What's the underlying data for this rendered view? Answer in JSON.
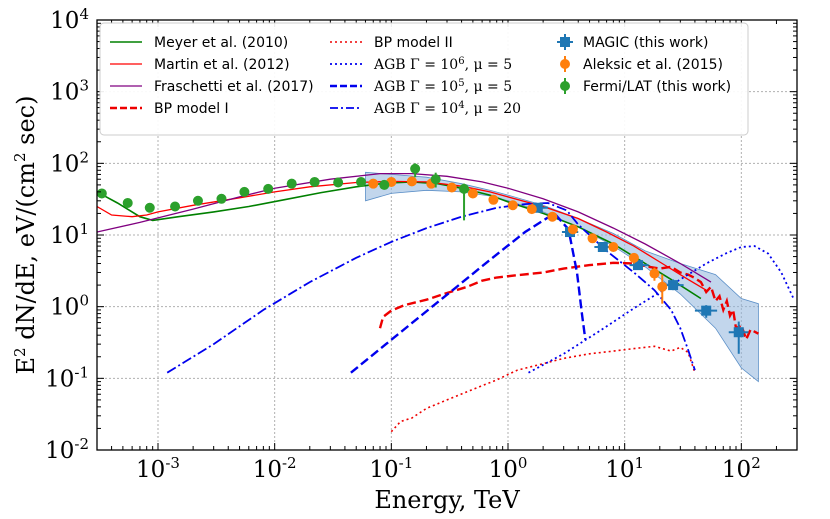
{
  "chart_data": {
    "type": "line",
    "title": "",
    "xlabel": "Energy, TeV",
    "ylabel_parts": [
      "E",
      "2",
      " dN/dE, eV/(cm",
      "2",
      " sec)"
    ],
    "xscale": "log",
    "yscale": "log",
    "xlim": [
      0.0003,
      300
    ],
    "ylim": [
      0.01,
      10000
    ],
    "grid": true,
    "legend_position": "top",
    "x_ticks": [
      {
        "value": 0.001,
        "base": "10",
        "exp": "-3"
      },
      {
        "value": 0.01,
        "base": "10",
        "exp": "-2"
      },
      {
        "value": 0.1,
        "base": "10",
        "exp": "-1"
      },
      {
        "value": 1,
        "base": "10",
        "exp": "0"
      },
      {
        "value": 10,
        "base": "10",
        "exp": "1"
      },
      {
        "value": 100,
        "base": "10",
        "exp": "2"
      }
    ],
    "y_ticks": [
      {
        "value": 0.01,
        "base": "10",
        "exp": "-2"
      },
      {
        "value": 0.1,
        "base": "10",
        "exp": "-1"
      },
      {
        "value": 1,
        "base": "10",
        "exp": "0"
      },
      {
        "value": 10,
        "base": "10",
        "exp": "1"
      },
      {
        "value": 100,
        "base": "10",
        "exp": "2"
      },
      {
        "value": 1000,
        "base": "10",
        "exp": "3"
      },
      {
        "value": 10000,
        "base": "10",
        "exp": "4"
      }
    ],
    "series": [
      {
        "name": "Meyer et al. (2010)",
        "kind": "line",
        "color": "#008000",
        "dash": "solid",
        "width": 1.6,
        "x": [
          0.0003,
          0.00045,
          0.0007,
          0.0009,
          0.0015,
          0.003,
          0.006,
          0.012,
          0.025,
          0.05,
          0.09,
          0.15,
          0.25,
          0.4,
          0.7,
          1.0,
          2.0,
          4.0,
          8.0,
          15.0,
          25.0,
          45.0
        ],
        "y": [
          40,
          28,
          18,
          16,
          18,
          21,
          25,
          31,
          39,
          47,
          53,
          55,
          52,
          45,
          36,
          29,
          20,
          13,
          7.5,
          4.0,
          2.4,
          1.3
        ]
      },
      {
        "name": "Martin et al. (2012)",
        "kind": "line",
        "color": "#ff0000",
        "dash": "solid",
        "width": 1.3,
        "x": [
          0.0003,
          0.0004,
          0.0006,
          0.0008,
          0.001,
          0.002,
          0.005,
          0.01,
          0.02,
          0.05,
          0.1,
          0.2,
          0.4,
          0.7,
          1.0,
          2.0,
          4.0,
          7.0,
          12.0,
          20.0,
          35.0,
          50.0
        ],
        "y": [
          25,
          19,
          18,
          19,
          21,
          26,
          33,
          40,
          47,
          54,
          56,
          55,
          48,
          40,
          34,
          25,
          17,
          11,
          7.0,
          4.2,
          2.4,
          1.7
        ]
      },
      {
        "name": "Fraschetti et al. (2017)",
        "kind": "line",
        "color": "#800080",
        "dash": "solid",
        "width": 1.3,
        "x": [
          0.0003,
          0.0007,
          0.002,
          0.005,
          0.01,
          0.03,
          0.08,
          0.15,
          0.3,
          0.6,
          1.0,
          2.0,
          4.0,
          8.0,
          15.0,
          30.0,
          55.0
        ],
        "y": [
          11,
          15,
          23,
          34,
          45,
          60,
          72,
          72,
          66,
          55,
          45,
          32,
          21,
          12.5,
          7.5,
          4.0,
          2.2
        ]
      },
      {
        "name": "BP model I",
        "kind": "line",
        "color": "#ee0000",
        "dash": "9 4",
        "width": 2.4,
        "x": [
          0.08,
          0.085,
          0.1,
          0.13,
          0.2,
          0.3,
          0.45,
          0.6,
          0.8,
          1.2,
          2.0,
          3.0,
          5.0,
          8.0,
          12.0,
          16.0,
          20.0,
          25.0,
          30.0,
          35.0,
          40.0,
          45.0,
          50.0,
          55.0,
          60.0,
          65.0,
          70.0,
          75.0,
          80.0,
          85.0,
          90.0,
          100.0,
          110.0,
          120.0,
          140.0
        ],
        "y": [
          0.5,
          0.72,
          0.88,
          1.05,
          1.25,
          1.55,
          1.9,
          2.3,
          2.55,
          2.75,
          3.0,
          3.4,
          3.8,
          4.1,
          4.0,
          3.6,
          3.4,
          3.6,
          3.0,
          2.8,
          2.5,
          2.2,
          1.6,
          1.9,
          1.2,
          1.4,
          0.9,
          1.2,
          0.75,
          0.9,
          0.5,
          0.55,
          0.35,
          0.48,
          0.42
        ]
      },
      {
        "name": "BP model II",
        "kind": "line",
        "color": "#ee0000",
        "dash": "2 3",
        "width": 1.6,
        "x": [
          0.1,
          0.12,
          0.15,
          0.2,
          0.3,
          0.5,
          0.8,
          1.2,
          2.0,
          3.0,
          5.0,
          8.0,
          12.0,
          18.0,
          25.0,
          30.0,
          35.0,
          40.0
        ],
        "y": [
          0.018,
          0.025,
          0.028,
          0.038,
          0.05,
          0.07,
          0.095,
          0.13,
          0.16,
          0.19,
          0.22,
          0.24,
          0.26,
          0.28,
          0.24,
          0.27,
          0.23,
          0.12
        ]
      },
      {
        "name": "AGB Γ=10⁶, μ=5",
        "kind": "line",
        "color": "#0000ee",
        "dash": "2 3",
        "width": 1.8,
        "x": [
          1.5,
          3.0,
          6.0,
          12.0,
          25.0,
          50.0,
          75.0,
          100.0,
          130.0,
          170.0,
          220.0,
          280.0
        ],
        "y": [
          0.12,
          0.22,
          0.45,
          0.95,
          2.0,
          4.0,
          5.6,
          6.8,
          7.0,
          5.5,
          3.0,
          1.3
        ]
      },
      {
        "name": "AGB Γ=10⁵, μ=5",
        "kind": "line",
        "color": "#0000ee",
        "dash": "9 4",
        "width": 2.4,
        "x": [
          0.045,
          0.09,
          0.18,
          0.35,
          0.7,
          1.4,
          2.5,
          3.3,
          3.9,
          4.3,
          4.6
        ],
        "y": [
          0.12,
          0.3,
          0.75,
          1.8,
          4.5,
          11,
          20,
          12,
          3.0,
          0.8,
          0.35
        ]
      },
      {
        "name": "AGB Γ=10⁴, μ=20",
        "kind": "line",
        "color": "#0000ee",
        "dash": "10 3 2 3",
        "width": 1.8,
        "x": [
          0.0012,
          0.003,
          0.008,
          0.02,
          0.05,
          0.1,
          0.2,
          0.4,
          0.8,
          1.4,
          2.2,
          3.2,
          4.0,
          7.0,
          12.0,
          18.0,
          25.0,
          30.0,
          35.0,
          40.0
        ],
        "y": [
          0.12,
          0.3,
          0.9,
          2.2,
          4.8,
          8.0,
          12.5,
          18.0,
          24.0,
          27.0,
          28.0,
          22.0,
          14.0,
          6.0,
          3.0,
          1.7,
          0.9,
          0.5,
          0.25,
          0.13
        ]
      },
      {
        "name": "MAGIC (this work)",
        "kind": "points",
        "color": "#1f77b4",
        "marker": "square",
        "x": [
          1.8,
          3.4,
          6.5,
          13.0,
          26.0,
          50.0,
          95.0
        ],
        "y": [
          24,
          11,
          6.8,
          3.8,
          2.0,
          0.88,
          0.44
        ],
        "y_lo": [
          22,
          10,
          6.2,
          3.4,
          1.7,
          0.7,
          0.22
        ],
        "y_hi": [
          26,
          12,
          7.4,
          4.2,
          2.4,
          1.05,
          0.62
        ],
        "x_lo": [
          1.5,
          2.9,
          5.5,
          11.0,
          22.0,
          40.0,
          78.0
        ],
        "x_hi": [
          2.2,
          4.0,
          7.8,
          16.0,
          32.0,
          62.0,
          115.0
        ]
      },
      {
        "name": "Aleksic et al. (2015)",
        "kind": "points",
        "color": "#ff7f0e",
        "marker": "circle",
        "x": [
          0.07,
          0.1,
          0.15,
          0.22,
          0.33,
          0.5,
          0.75,
          1.1,
          1.6,
          2.4,
          3.6,
          5.3,
          8.0,
          12.0,
          18.0,
          21.0
        ],
        "y": [
          52,
          55,
          56,
          52,
          46,
          38,
          31,
          26,
          23,
          18,
          12,
          9.0,
          6.8,
          4.8,
          2.9,
          1.9
        ],
        "y_lo": [
          49,
          52,
          53,
          49,
          44,
          36,
          29,
          24,
          21,
          16.5,
          11,
          8.2,
          6.0,
          4.0,
          2.3,
          1.1
        ],
        "y_hi": [
          55,
          58,
          59,
          55,
          48,
          40,
          33,
          28,
          25,
          19.5,
          13,
          9.8,
          7.6,
          5.6,
          3.5,
          2.8
        ]
      },
      {
        "name": "Fermi/LAT (this work)",
        "kind": "points",
        "color": "#2ca02c",
        "marker": "circle",
        "x": [
          0.00033,
          0.00055,
          0.00085,
          0.0014,
          0.0022,
          0.0035,
          0.0055,
          0.0088,
          0.014,
          0.022,
          0.035,
          0.055,
          0.087,
          0.16,
          0.24,
          0.42
        ],
        "y": [
          38,
          28,
          24,
          25,
          30,
          32,
          40,
          44,
          52,
          55,
          54,
          55,
          50,
          84,
          60,
          44
        ],
        "y_lo": [
          33,
          25,
          22,
          23,
          28,
          30,
          37,
          41,
          48,
          51,
          50,
          50,
          43,
          64,
          46,
          16
        ],
        "y_hi": [
          43,
          31,
          26.5,
          27.5,
          32.5,
          34.5,
          43,
          47,
          56,
          59,
          58,
          60,
          57,
          100,
          74,
          52
        ]
      },
      {
        "name": "MAGIC uncertainty band",
        "kind": "band",
        "color": "#8fb5dd",
        "x": [
          0.06,
          0.1,
          0.2,
          0.4,
          0.7,
          1.0,
          2.0,
          4.0,
          8.0,
          15.0,
          30.0,
          60.0,
          100.0,
          140.0
        ],
        "y_lo": [
          30,
          38,
          42,
          40,
          35,
          30,
          21,
          13,
          7.0,
          3.6,
          1.5,
          0.5,
          0.14,
          0.09
        ],
        "y_hi": [
          75,
          70,
          64,
          52,
          42,
          36,
          26,
          17,
          10.5,
          6.0,
          4.0,
          2.8,
          1.3,
          1.1
        ]
      }
    ],
    "legend": [
      {
        "label": "Meyer et al. (2010)",
        "color": "#008000",
        "style": "solid",
        "width": 1.6,
        "col": 0
      },
      {
        "label": "Martin et al. (2012)",
        "color": "#ff0000",
        "style": "solid",
        "width": 1.3,
        "col": 0
      },
      {
        "label": "Fraschetti et al. (2017)",
        "color": "#800080",
        "style": "solid",
        "width": 1.3,
        "col": 0
      },
      {
        "label": "BP model I",
        "color": "#ee0000",
        "style": "dashed",
        "width": 2.4,
        "col": 0
      },
      {
        "label": "BP model II",
        "color": "#ee0000",
        "style": "dotted",
        "width": 1.6,
        "col": 1
      },
      {
        "label_prefix": "AGB Γ = 10",
        "label_exp": "6",
        "label_suffix": ", μ = 5",
        "color": "#0000ee",
        "style": "dotted",
        "width": 1.8,
        "col": 1
      },
      {
        "label_prefix": "AGB Γ = 10",
        "label_exp": "5",
        "label_suffix": ", μ = 5",
        "color": "#0000ee",
        "style": "dashed",
        "width": 2.4,
        "col": 1
      },
      {
        "label_prefix": "AGB Γ = 10",
        "label_exp": "4",
        "label_suffix": ", μ = 20",
        "color": "#0000ee",
        "style": "dashdot",
        "width": 1.8,
        "col": 1
      },
      {
        "label": "MAGIC (this work)",
        "color": "#1f77b4",
        "style": "square",
        "col": 2
      },
      {
        "label": "Aleksic et al. (2015)",
        "color": "#ff7f0e",
        "style": "circle",
        "col": 2
      },
      {
        "label": "Fermi/LAT (this work)",
        "color": "#2ca02c",
        "style": "circle",
        "col": 2
      }
    ]
  }
}
